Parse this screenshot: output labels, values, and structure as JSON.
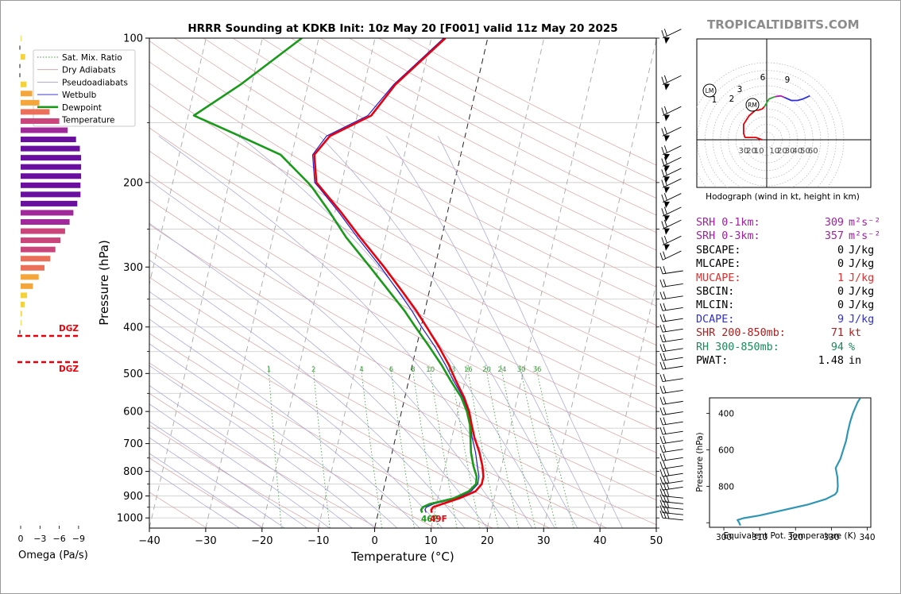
{
  "title": "HRRR Sounding at KDKB Init: 10z May 20 [F001] valid 11z May 20 2025",
  "brand": "TROPICALTIDBITS.COM",
  "colors": {
    "temperature": "#e8000b",
    "dewpoint": "#1a9a1a",
    "wetbulb": "#1f1fd0",
    "srh": "#a020a0",
    "mucape": "#e03030",
    "dcape": "#3030d0",
    "shr": "#b02020",
    "rh": "#1a8a5a",
    "theta_e": "#2f96b4"
  },
  "chart_data": [
    {
      "type": "line",
      "name": "skew-t",
      "xlabel": "Temperature (°C)",
      "ylabel": "Pressure (hPa)",
      "xlim": [
        -40,
        50
      ],
      "ylim": [
        1050,
        100
      ],
      "y_scale": "log",
      "x_ticks": [
        "−40",
        "−30",
        "−20",
        "−10",
        "0",
        "10",
        "20",
        "30",
        "40",
        "50"
      ],
      "y_ticks": [
        "100",
        "200",
        "300",
        "400",
        "500",
        "600",
        "700",
        "800",
        "900",
        "1000"
      ],
      "grid": true,
      "legend": {
        "placement": "top-left",
        "entries": [
          {
            "label": "Sat. Mix. Ratio",
            "color": "#3c9a3c",
            "style": "dotted"
          },
          {
            "label": "Dry Adiabats",
            "color": "#c8a0a0",
            "style": "solid"
          },
          {
            "label": "Pseudoadiabats",
            "color": "#a0a0c8",
            "style": "solid"
          },
          {
            "label": "Wetbulb",
            "color": "#1f1fd0",
            "style": "solid"
          },
          {
            "label": "Dewpoint",
            "color": "#1a9a1a",
            "style": "solid"
          },
          {
            "label": "Temperature",
            "color": "#e8000b",
            "style": "solid"
          }
        ]
      },
      "mixing_ratio_labels": [
        "1",
        "2",
        "4",
        "6",
        "8",
        "10",
        "13",
        "16",
        "20",
        "24",
        "30",
        "36"
      ],
      "surface_labels": {
        "dewpoint": "46F",
        "temperature": "49F"
      },
      "series": [
        {
          "name": "Temperature",
          "p": [
            975,
            962,
            950,
            935,
            910,
            880,
            850,
            820,
            780,
            730,
            680,
            640,
            600,
            560,
            520,
            480,
            440,
            400,
            370,
            340,
            300,
            260,
            230,
            205,
            200,
            175,
            160,
            145,
            125,
            100
          ],
          "t": [
            9.5,
            9.3,
            9.5,
            11,
            13.8,
            16.4,
            17.2,
            17.2,
            16.6,
            15.5,
            14,
            13,
            12,
            10.5,
            8.5,
            6.5,
            4,
            1,
            -1.5,
            -4.5,
            -9,
            -14.5,
            -19,
            -23.5,
            -24.5,
            -26,
            -24,
            -17.5,
            -14.5,
            -7.5
          ]
        },
        {
          "name": "Wetbulb",
          "p": [
            975,
            962,
            950,
            935,
            910,
            880,
            850,
            820,
            780,
            730,
            680,
            640,
            600,
            560,
            520,
            480,
            440,
            400,
            370,
            340,
            300,
            260,
            230,
            205,
            200,
            175,
            160,
            145,
            125,
            100
          ],
          "t": [
            8.5,
            8.2,
            8.3,
            9.5,
            13.3,
            15.6,
            16.5,
            16.4,
            15.7,
            14.8,
            13.6,
            12.8,
            11.8,
            10.3,
            8.1,
            5.9,
            3.3,
            0.1,
            -2.3,
            -5.2,
            -9.6,
            -15,
            -19.4,
            -23.8,
            -24.8,
            -26.3,
            -24.6,
            -18.1,
            -14.8,
            -7.8
          ]
        },
        {
          "name": "Dewpoint",
          "p": [
            975,
            962,
            950,
            935,
            910,
            880,
            850,
            820,
            780,
            730,
            680,
            640,
            600,
            560,
            520,
            480,
            440,
            400,
            370,
            340,
            300,
            260,
            230,
            205,
            200,
            175,
            160,
            145,
            125,
            100
          ],
          "t": [
            7.8,
            7.5,
            7.7,
            8.8,
            12.8,
            15.2,
            16.2,
            16,
            15,
            14,
            13.3,
            12.7,
            11.6,
            10,
            7.6,
            5.2,
            2.3,
            -1,
            -3.6,
            -6.8,
            -11.5,
            -17,
            -21,
            -25,
            -26,
            -32,
            -40,
            -49,
            -42,
            -33
          ]
        }
      ],
      "wind_barb_pressures": [
        100,
        125,
        145,
        160,
        175,
        185,
        195,
        205,
        220,
        235,
        250,
        270,
        290,
        310,
        330,
        350,
        370,
        390,
        410,
        430,
        450,
        470,
        490,
        520,
        550,
        580,
        610,
        640,
        670,
        700,
        730,
        760,
        790,
        820,
        850,
        875,
        900,
        925,
        950,
        975,
        1000
      ]
    },
    {
      "type": "line",
      "name": "hodograph",
      "xlabel": "Hodograph (wind in kt, height in km)",
      "ring_labels": [
        "30",
        "20",
        "10",
        "10",
        "20",
        "30",
        "40",
        "50",
        "60"
      ],
      "height_labels": [
        "1",
        "2",
        "3",
        "6",
        "9"
      ],
      "storm_markers": [
        "LM",
        "RM"
      ],
      "segments": [
        {
          "km": "0-1",
          "color": "#e8000b",
          "u": [
            -6,
            -14,
            -28,
            -30,
            -30,
            -23,
            -14,
            -12
          ],
          "v": [
            0,
            3,
            3,
            8,
            20,
            31,
            39,
            38
          ]
        },
        {
          "km": "1-3",
          "color": "#e8000b",
          "u": [
            -12,
            -6,
            -3
          ],
          "v": [
            38,
            40,
            43
          ]
        },
        {
          "km": "3-6",
          "color": "#2ca02c",
          "u": [
            -3,
            0,
            3,
            8,
            11
          ],
          "v": [
            43,
            48,
            53,
            55,
            56
          ]
        },
        {
          "km": "6-9",
          "color": "#b020b0",
          "u": [
            11,
            18,
            23
          ],
          "v": [
            56,
            57,
            55
          ]
        },
        {
          "km": "9-12",
          "color": "#2f2fe0",
          "u": [
            23,
            32,
            40,
            47,
            56
          ],
          "v": [
            55,
            51,
            51,
            53,
            57
          ]
        }
      ]
    },
    {
      "type": "bar",
      "name": "omega",
      "xlabel": "Omega (Pa/s)",
      "x_ticks": [
        "0",
        "−3",
        "−6",
        "−9"
      ],
      "dgz_label": "DGZ",
      "values": [
        -0.1,
        0,
        -0.7,
        0,
        0,
        -0.9,
        -1.8,
        -2.9,
        -4.5,
        -6,
        -7.3,
        -8.6,
        -9.2,
        -9.4,
        -9.4,
        -9.4,
        -9.3,
        -9.3,
        -8.8,
        -8.2,
        -7.6,
        -6.9,
        -6.2,
        -5.4,
        -4.6,
        -3.7,
        -2.8,
        -1.9,
        -1,
        -0.6,
        -0.2,
        -0.1,
        -0.05
      ]
    },
    {
      "type": "line",
      "name": "theta-e",
      "xlabel": "Equivalent Pot. Temperature (K)",
      "ylabel": "Pressure (hPa)",
      "xlim": [
        296,
        341
      ],
      "ylim": [
        1025,
        315
      ],
      "x_ticks": [
        "300",
        "310",
        "320",
        "330",
        "340"
      ],
      "y_ticks": [
        "400",
        "600",
        "800"
      ],
      "p": [
        1015,
        1000,
        985,
        975,
        960,
        900,
        870,
        845,
        830,
        800,
        750,
        730,
        700,
        650,
        600,
        550,
        500,
        450,
        400,
        340,
        318
      ],
      "theta_e": [
        304.6,
        304.3,
        303.8,
        305.5,
        310,
        323.5,
        328.5,
        331,
        331.6,
        331.8,
        331.7,
        331.5,
        331.2,
        332.5,
        333.3,
        334.1,
        334.6,
        335.2,
        336,
        337.3,
        338
      ]
    }
  ],
  "params": [
    {
      "label": "SRH 0-1km:",
      "value": "309",
      "unit": "m²s⁻²",
      "color": "srh"
    },
    {
      "label": "SRH 0-3km:",
      "value": "357",
      "unit": "m²s⁻²",
      "color": "srh"
    },
    {
      "label": "SBCAPE:",
      "value": "0",
      "unit": "J/kg",
      "color": ""
    },
    {
      "label": "MLCAPE:",
      "value": "0",
      "unit": "J/kg",
      "color": ""
    },
    {
      "label": "MUCAPE:",
      "value": "1",
      "unit": "J/kg",
      "color": "mucape"
    },
    {
      "label": "SBCIN:",
      "value": "0",
      "unit": "J/kg",
      "color": ""
    },
    {
      "label": "MLCIN:",
      "value": "0",
      "unit": "J/kg",
      "color": ""
    },
    {
      "label": "DCAPE:",
      "value": "9",
      "unit": "J/kg",
      "color": "dcape"
    },
    {
      "label": "SHR 200-850mb:",
      "value": "71",
      "unit": "kt",
      "color": "shr"
    },
    {
      "label": "RH 300-850mb:",
      "value": "94",
      "unit": "%",
      "color": "rh"
    },
    {
      "label": "PWAT:",
      "value": "1.48",
      "unit": "in",
      "color": ""
    }
  ]
}
